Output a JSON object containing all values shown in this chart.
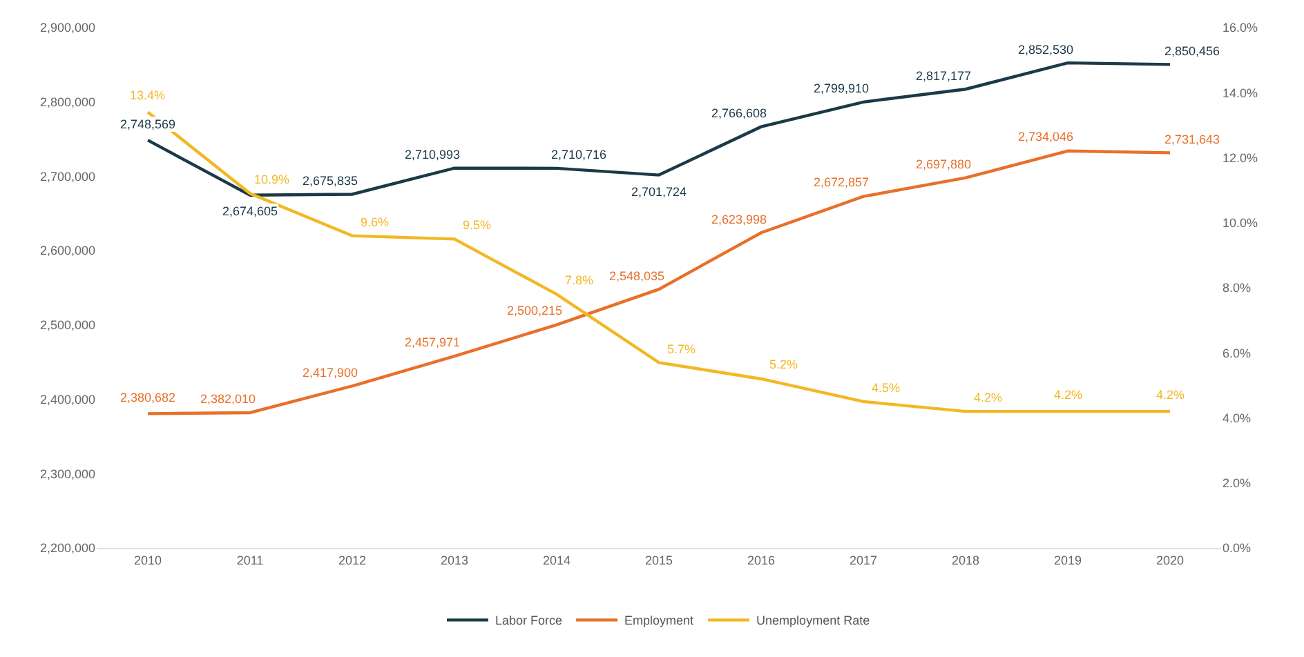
{
  "chart_data": {
    "type": "line",
    "categories": [
      "2010",
      "2011",
      "2012",
      "2013",
      "2014",
      "2015",
      "2016",
      "2017",
      "2018",
      "2019",
      "2020"
    ],
    "series": [
      {
        "name": "Labor Force",
        "color": "#1c3947",
        "values": [
          2748569,
          2674605,
          2675835,
          2710993,
          2710716,
          2701724,
          2766608,
          2799910,
          2817177,
          2852530,
          2850456
        ],
        "value_labels": [
          "2,748,569",
          "2,674,605",
          "2,675,835",
          "2,710,993",
          "2,710,716",
          "2,701,724",
          "2,766,608",
          "2,799,910",
          "2,817,177",
          "2,852,530",
          "2,850,456"
        ]
      },
      {
        "name": "Employment",
        "color": "#e8702a",
        "values": [
          2380682,
          2382010,
          2417900,
          2457971,
          2500215,
          2548035,
          2623998,
          2672857,
          2697880,
          2734046,
          2731643
        ],
        "value_labels": [
          "2,380,682",
          "2,382,010",
          "2,417,900",
          "2,457,971",
          "2,500,215",
          "2,548,035",
          "2,623,998",
          "2,672,857",
          "2,697,880",
          "2,734,046",
          "2,731,643"
        ]
      },
      {
        "name": "Unemployment Rate",
        "color": "#f2b824",
        "axis": "y2",
        "values": [
          13.4,
          10.9,
          9.6,
          9.5,
          7.8,
          5.7,
          5.2,
          4.5,
          4.2,
          4.2,
          4.2
        ],
        "value_labels": [
          "13.4%",
          "10.9%",
          "9.6%",
          "9.5%",
          "7.8%",
          "5.7%",
          "5.2%",
          "4.5%",
          "4.2%",
          "4.2%",
          "4.2%"
        ]
      }
    ],
    "ylim": [
      2200000,
      2900000
    ],
    "yticks": [
      {
        "value": 2200000,
        "label": "2,200,000"
      },
      {
        "value": 2300000,
        "label": "2,300,000"
      },
      {
        "value": 2400000,
        "label": "2,400,000"
      },
      {
        "value": 2500000,
        "label": "2,500,000"
      },
      {
        "value": 2600000,
        "label": "2,600,000"
      },
      {
        "value": 2700000,
        "label": "2,700,000"
      },
      {
        "value": 2800000,
        "label": "2,800,000"
      },
      {
        "value": 2900000,
        "label": "2,900,000"
      }
    ],
    "y2lim": [
      0,
      16
    ],
    "y2ticks": [
      {
        "value": 0,
        "label": "0.0%"
      },
      {
        "value": 2,
        "label": "2.0%"
      },
      {
        "value": 4,
        "label": "4.0%"
      },
      {
        "value": 6,
        "label": "6.0%"
      },
      {
        "value": 8,
        "label": "8.0%"
      },
      {
        "value": 10,
        "label": "10.0%"
      },
      {
        "value": 12,
        "label": "12.0%"
      },
      {
        "value": 14,
        "label": "14.0%"
      },
      {
        "value": 16,
        "label": "16.0%"
      }
    ],
    "grid": false,
    "legend": "bottom",
    "marker": "none",
    "line_style": "solid"
  }
}
